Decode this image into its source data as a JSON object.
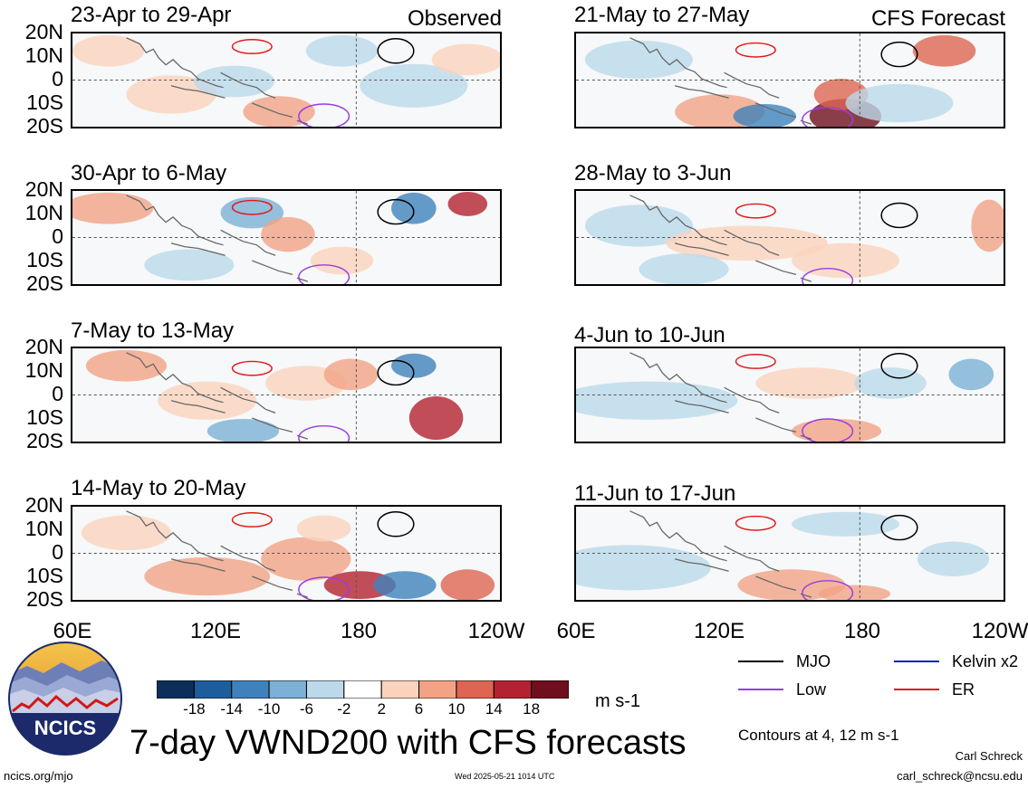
{
  "labels": {
    "observed": "Observed",
    "cfs_forecast": "CFS Forecast",
    "main_title": "7-day VWND200 with CFS forecasts",
    "units": "m s-1",
    "contours_note": "Contours at 4, 12 m s-1",
    "author": "Carl Schreck",
    "email": "carl_schreck@ncsu.edu",
    "site": "ncics.org/mjo",
    "timestamp": "Wed 2025-05-21 1014 UTC",
    "logo_text": "NCICS"
  },
  "panels_left": [
    "23-Apr to 29-Apr",
    "30-Apr to 6-May",
    "7-May to 13-May",
    "14-May to 20-May"
  ],
  "panels_right": [
    "21-May to 27-May",
    "28-May to 3-Jun",
    "4-Jun to 10-Jun",
    "11-Jun to 17-Jun"
  ],
  "lat_labels": [
    "20N",
    "10N",
    "0",
    "10S",
    "20S"
  ],
  "lon_labels": [
    "60E",
    "120E",
    "180",
    "120W"
  ],
  "colorbar": {
    "ticks": [
      "-18",
      "-14",
      "-10",
      "-6",
      "-2",
      "2",
      "6",
      "10",
      "14",
      "18"
    ],
    "colors": [
      "#0b2f5a",
      "#1d5d9b",
      "#3f82bb",
      "#7cb0d6",
      "#bcd9ea",
      "#ffffff",
      "#fbd3bd",
      "#f2a386",
      "#dd6551",
      "#b42231",
      "#6f0f1d"
    ]
  },
  "legend": [
    {
      "label": "MJO",
      "color": "#000000"
    },
    {
      "label": "Kelvin x2",
      "color": "#1020d0"
    },
    {
      "label": "Low",
      "color": "#9a3ee0"
    },
    {
      "label": "ER",
      "color": "#e01818"
    }
  ]
}
